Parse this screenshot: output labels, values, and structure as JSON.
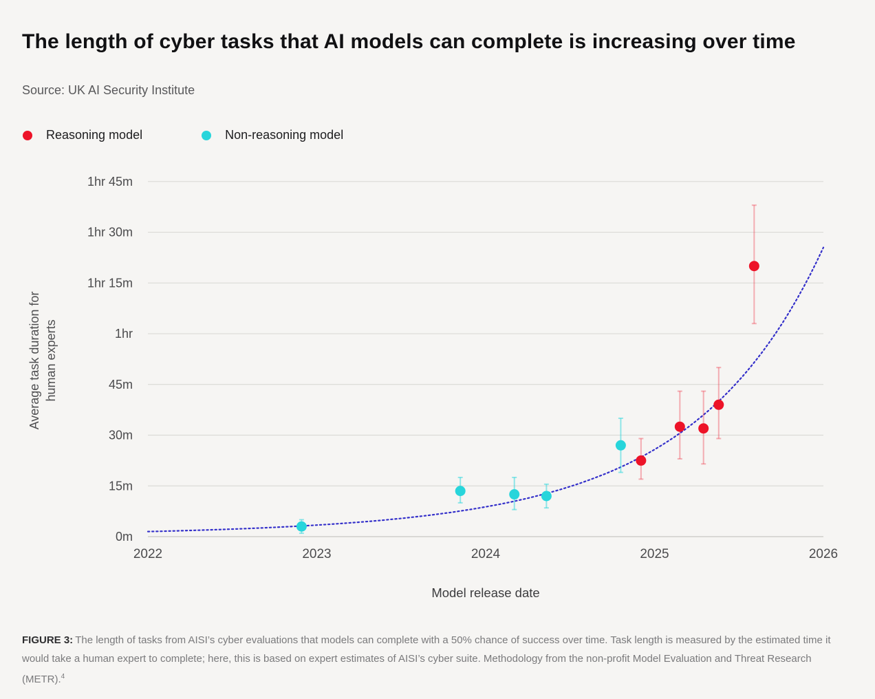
{
  "page": {
    "title": "The length of cyber tasks that AI models can complete is increasing over time",
    "source": "Source: UK AI Security Institute"
  },
  "legend": [
    {
      "label": "Reasoning model",
      "color": "#ED1328"
    },
    {
      "label": "Non-reasoning model",
      "color": "#27D5DB"
    }
  ],
  "footnote": {
    "label": "FIGURE 3:",
    "text": "The length of tasks from AISI’s cyber evaluations that models can complete with a 50% chance of success over time. Task length is measured by the estimated time it would take a human expert to complete; here, this is based on expert estimates of AISI’s cyber suite. Methodology from the non-profit Model Evaluation and Threat Research (METR).",
    "superscript": "4"
  },
  "chart_data": {
    "type": "scatter",
    "title": "The length of cyber tasks that AI models can complete is increasing over time",
    "xlabel": "Model release date",
    "ylabel": "Average task duration for human experts",
    "ylabel_lines": [
      "Average task duration for",
      "human experts"
    ],
    "xlim": [
      2022,
      2026
    ],
    "x_ticks": [
      2022,
      2023,
      2024,
      2025,
      2026
    ],
    "ylim_minutes": [
      0,
      110
    ],
    "y_ticks": [
      {
        "minutes": 0,
        "label": "0m"
      },
      {
        "minutes": 15,
        "label": "15m"
      },
      {
        "minutes": 30,
        "label": "30m"
      },
      {
        "minutes": 45,
        "label": "45m"
      },
      {
        "minutes": 60,
        "label": "1hr"
      },
      {
        "minutes": 75,
        "label": "1hr 15m"
      },
      {
        "minutes": 90,
        "label": "1hr 30m"
      },
      {
        "minutes": 105,
        "label": "1hr 45m"
      }
    ],
    "grid": true,
    "legend_position": "top-left",
    "series": [
      {
        "name": "Reasoning model",
        "color": "#ED1328",
        "error_color": "rgba(237,19,40,0.32)",
        "points": [
          {
            "date": "2024-12",
            "x": 2024.92,
            "minutes": 22.5,
            "ci_low": 17,
            "ci_high": 29
          },
          {
            "date": "2025-02",
            "x": 2025.15,
            "minutes": 32.5,
            "ci_low": 23,
            "ci_high": 43
          },
          {
            "date": "2025-04",
            "x": 2025.29,
            "minutes": 32,
            "ci_low": 21.5,
            "ci_high": 43
          },
          {
            "date": "2025-05",
            "x": 2025.38,
            "minutes": 39,
            "ci_low": 29,
            "ci_high": 50
          },
          {
            "date": "2025-08",
            "x": 2025.59,
            "minutes": 80,
            "ci_low": 63,
            "ci_high": 98
          }
        ]
      },
      {
        "name": "Non-reasoning model",
        "color": "#27D5DB",
        "error_color": "rgba(39,213,219,0.5)",
        "points": [
          {
            "date": "2022-12",
            "x": 2022.91,
            "minutes": 3,
            "ci_low": 1,
            "ci_high": 5
          },
          {
            "date": "2023-11",
            "x": 2023.85,
            "minutes": 13.5,
            "ci_low": 10,
            "ci_high": 17.5
          },
          {
            "date": "2024-03",
            "x": 2024.17,
            "minutes": 12.5,
            "ci_low": 8,
            "ci_high": 17.5
          },
          {
            "date": "2024-05",
            "x": 2024.36,
            "minutes": 12,
            "ci_low": 8.5,
            "ci_high": 15.5
          },
          {
            "date": "2024-10",
            "x": 2024.8,
            "minutes": 27,
            "ci_low": 19,
            "ci_high": 35
          }
        ]
      }
    ],
    "trendline": {
      "style": "dotted",
      "color": "#3430CA",
      "fit": "log-quadratic",
      "anchors": [
        {
          "x": 2022,
          "minutes": 1.5
        },
        {
          "x": 2024,
          "minutes": 8.8
        },
        {
          "x": 2026,
          "minutes": 85.5
        }
      ]
    }
  }
}
